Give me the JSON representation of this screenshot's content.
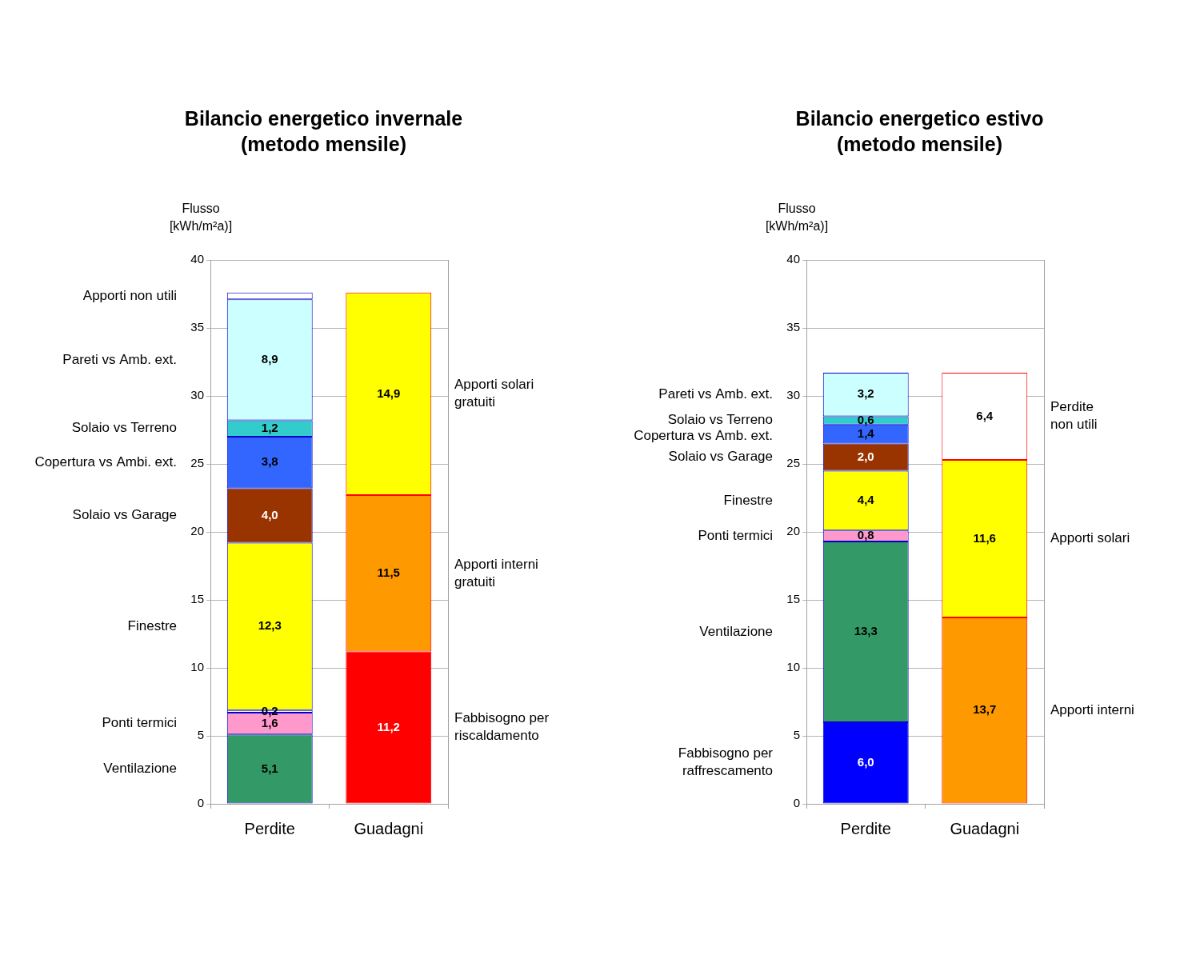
{
  "chart_data": [
    {
      "type": "bar",
      "title": [
        "Bilancio energetico invernale",
        "(metodo mensile)"
      ],
      "y_label": [
        "Flusso",
        "[kWh/m²a)]"
      ],
      "categories": [
        "Perdite",
        "Guadagni"
      ],
      "stacked": true,
      "data_labels": true,
      "grid": true,
      "ylim": [
        0,
        40
      ],
      "yticks": [
        0,
        5,
        10,
        15,
        20,
        25,
        30,
        35,
        40
      ],
      "series": [
        {
          "name": "Ventilazione",
          "color": "#339966",
          "values": [
            5.1,
            null
          ],
          "value_labels": [
            "5,1",
            null
          ]
        },
        {
          "name": "Ponti termici",
          "color": "#ff99cc",
          "values": [
            1.6,
            null
          ],
          "value_labels": [
            "1,6",
            null
          ]
        },
        {
          "name": null,
          "color": "#ffffff",
          "values": [
            0.2,
            null
          ],
          "value_labels": [
            "0,2",
            null
          ]
        },
        {
          "name": "Finestre",
          "color": "#ffff00",
          "values": [
            12.3,
            null
          ],
          "value_labels": [
            "12,3",
            null
          ]
        },
        {
          "name": "Solaio vs Garage",
          "color": "#993300",
          "values": [
            4.0,
            null
          ],
          "value_labels": [
            "4,0",
            null
          ]
        },
        {
          "name": "Copertura vs Ambi. ext.",
          "color": "#3366ff",
          "values": [
            3.8,
            null
          ],
          "value_labels": [
            "3,8",
            null
          ]
        },
        {
          "name": "Solaio vs Terreno",
          "color": "#33cccc",
          "values": [
            1.2,
            null
          ],
          "value_labels": [
            "1,2",
            null
          ]
        },
        {
          "name": "Pareti vs Amb. ext.",
          "color": "#ccffff",
          "values": [
            8.9,
            null
          ],
          "value_labels": [
            "8,9",
            null
          ]
        },
        {
          "name": "Apporti non utili",
          "color": "#ffffff",
          "values": [
            0.5,
            null
          ],
          "value_labels": [
            null,
            null
          ]
        },
        {
          "name": [
            "Fabbisogno per",
            "riscaldamento"
          ],
          "color": "#ff0000",
          "values": [
            null,
            11.2
          ],
          "value_labels": [
            null,
            "11,2"
          ]
        },
        {
          "name": [
            "Apporti interni",
            "gratuiti"
          ],
          "color": "#ff9900",
          "values": [
            null,
            11.5
          ],
          "value_labels": [
            null,
            "11,5"
          ]
        },
        {
          "name": [
            "Apporti solari",
            "gratuiti"
          ],
          "color": "#ffff00",
          "values": [
            null,
            14.9
          ],
          "value_labels": [
            null,
            "14,9"
          ]
        }
      ]
    },
    {
      "type": "bar",
      "title": [
        "Bilancio energetico estivo",
        "(metodo mensile)"
      ],
      "y_label": [
        "Flusso",
        "[kWh/m²a)]"
      ],
      "categories": [
        "Perdite",
        "Guadagni"
      ],
      "stacked": true,
      "data_labels": true,
      "grid": true,
      "ylim": [
        0,
        40
      ],
      "yticks": [
        0,
        5,
        10,
        15,
        20,
        25,
        30,
        35,
        40
      ],
      "series": [
        {
          "name": [
            "Fabbisogno per",
            "raffrescamento"
          ],
          "color": "#0000ff",
          "values": [
            6.0,
            null
          ],
          "value_labels": [
            "6,0",
            null
          ]
        },
        {
          "name": "Ventilazione",
          "color": "#339966",
          "values": [
            13.3,
            null
          ],
          "value_labels": [
            "13,3",
            null
          ]
        },
        {
          "name": "Ponti termici",
          "color": "#ff99cc",
          "values": [
            0.8,
            null
          ],
          "value_labels": [
            "0,8",
            null
          ]
        },
        {
          "name": "Finestre",
          "color": "#ffff00",
          "values": [
            4.4,
            null
          ],
          "value_labels": [
            "4,4",
            null
          ]
        },
        {
          "name": "Solaio vs Garage",
          "color": "#993300",
          "values": [
            2.0,
            null
          ],
          "value_labels": [
            "2,0",
            null
          ]
        },
        {
          "name": "Copertura vs Amb. ext.",
          "color": "#3366ff",
          "values": [
            1.4,
            null
          ],
          "value_labels": [
            "1,4",
            null
          ]
        },
        {
          "name": "Solaio vs Terreno",
          "color": "#33cccc",
          "values": [
            0.6,
            null
          ],
          "value_labels": [
            "0,6",
            null
          ]
        },
        {
          "name": "Pareti vs Amb. ext.",
          "color": "#ccffff",
          "values": [
            3.2,
            null
          ],
          "value_labels": [
            "3,2",
            null
          ]
        },
        {
          "name": "Apporti interni",
          "color": "#ff9900",
          "values": [
            null,
            13.7
          ],
          "value_labels": [
            null,
            "13,7"
          ]
        },
        {
          "name": "Apporti solari",
          "color": "#ffff00",
          "values": [
            null,
            11.6
          ],
          "value_labels": [
            null,
            "11,6"
          ]
        },
        {
          "name": [
            "Perdite",
            "non utili"
          ],
          "color": "#ffffff",
          "values": [
            null,
            6.4
          ],
          "value_labels": [
            null,
            "6,4"
          ]
        }
      ]
    }
  ]
}
